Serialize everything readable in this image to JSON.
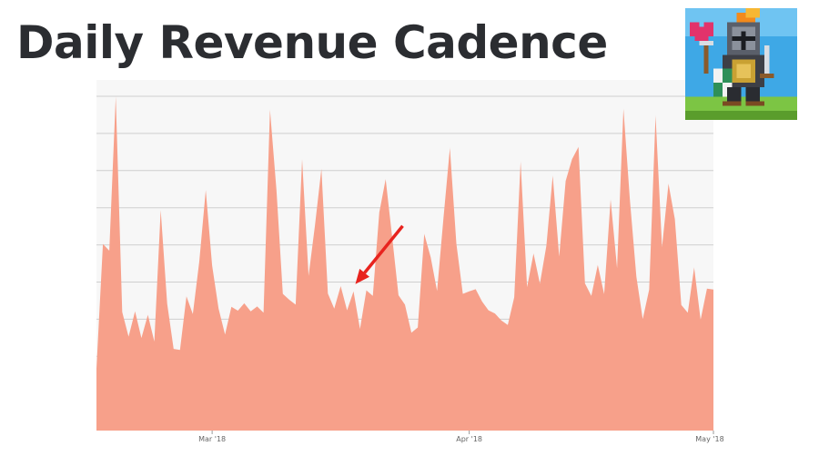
{
  "page": {
    "title": "Daily Revenue Cadence"
  },
  "colors": {
    "area_fill": "#f7a08a",
    "plot_background": "#f7f7f7",
    "gridline": "#cfcfcf",
    "title_text": "#2b2d31",
    "arrow": "#e8231e"
  },
  "icons": {
    "logo": "pixel-knight-game-icon",
    "annotation": "red-arrow-icon"
  },
  "chart_data": {
    "type": "area",
    "title": "Daily Revenue Cadence",
    "xlabel": "",
    "ylabel": "",
    "x_ticks": [
      "Mar '18",
      "Apr '18",
      "May '18"
    ],
    "ylim": [
      0,
      100
    ],
    "grid": true,
    "legend": "none",
    "annotation": {
      "type": "arrow",
      "target_index": 40
    },
    "series": [
      {
        "values": [
          17.7,
          53.2,
          51.3,
          95.2,
          33.8,
          26.8,
          34.0,
          26.4,
          33.0,
          25.4,
          62.9,
          36.2,
          23.3,
          23.0,
          38.3,
          33.2,
          48.2,
          68.6,
          47.1,
          34.8,
          27.4,
          35.3,
          34.2,
          36.3,
          34.0,
          35.4,
          33.6,
          91.5,
          68.6,
          39.0,
          37.3,
          35.9,
          77.4,
          44.1,
          58.5,
          74.6,
          39.1,
          34.8,
          41.2,
          34.3,
          39.7,
          29.0,
          40.0,
          38.4,
          62.2,
          71.7,
          55.3,
          38.6,
          35.9,
          27.9,
          29.4,
          56.1,
          49.4,
          39.8,
          60.8,
          80.6,
          53.3,
          39.0,
          39.7,
          40.3,
          36.8,
          34.3,
          33.4,
          31.4,
          30.1,
          38.0,
          76.7,
          40.9,
          50.5,
          41.9,
          52.7,
          72.7,
          49.6,
          71.2,
          77.4,
          80.9,
          42.0,
          38.4,
          47.2,
          38.9,
          65.9,
          46.3,
          91.8,
          65.8,
          43.9,
          31.8,
          40.2,
          89.8,
          52.3,
          70.4,
          60.3,
          35.8,
          33.6,
          46.5,
          31.6,
          40.5,
          40.2
        ]
      }
    ]
  }
}
